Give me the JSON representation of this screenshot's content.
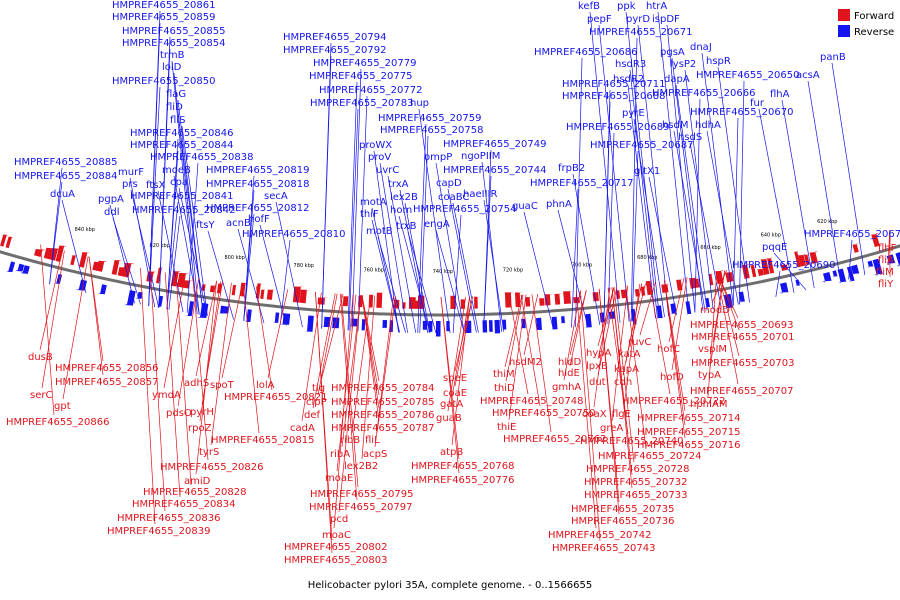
{
  "caption": "Helicobacter pylori 35A, complete genome. - 0..1566655",
  "legend": [
    {
      "label": "Forward",
      "color": "#e0141c"
    },
    {
      "label": "Reverse",
      "color": "#1414f0"
    }
  ],
  "colors": {
    "forward": "#e0141c",
    "reverse": "#1414f0",
    "ring": "#6e6e6e",
    "text": "#000000"
  },
  "scale_ticks": [
    "840 kbp",
    "820 kbp",
    "800 kbp",
    "780 kbp",
    "760 kbp",
    "740 kbp",
    "720 kbp",
    "700 kbp",
    "680 kbp",
    "660 kbp",
    "640 kbp",
    "620 kbp"
  ],
  "reverse_labels": [
    "HMPREF4655_20861",
    "HMPREF4655_20859",
    "HMPREF4655_20855",
    "HMPREF4655_20854",
    "trmB",
    "lolD",
    "HMPREF4655_20850",
    "flaG",
    "fliD",
    "fliS",
    "HMPREF4655_20846",
    "HMPREF4655_20844",
    "HMPREF4655_20838",
    "moeB",
    "HMPREF4655_20885",
    "murF",
    "cpa",
    "HMPREF4655_20884",
    "prs",
    "ftsX",
    "dcuA",
    "pgpA",
    "HMPREF4655_20841",
    "ddl",
    "HMPREF4655_20842",
    "ftsY",
    "HMPREF4655_20819",
    "HMPREF4655_20818",
    "secA",
    "HMPREF4655_20812",
    "acnB",
    "hofF",
    "HMPREF4655_20810",
    "HMPREF4655_20794",
    "HMPREF4655_20792",
    "HMPREF4655_20779",
    "HMPREF4655_20775",
    "HMPREF4655_20772",
    "HMPREF4655_20783",
    "hup",
    "HMPREF4655_20759",
    "HMPREF4655_20758",
    "HMPREF4655_20749",
    "proWX",
    "ngoPIIM",
    "proV",
    "uvrC",
    "HMPREF4655_20744",
    "trxA",
    "ompP",
    "haeIIIR",
    "capD",
    "lex2B",
    "motA",
    "hom",
    "coaBC",
    "HMPREF4655_20754",
    "guaC",
    "thiF",
    "trxB",
    "motB",
    "engA",
    "phnA",
    "kefB",
    "ppk",
    "htrA",
    "pepF",
    "pyrD",
    "ispDF",
    "HMPREF4655_20671",
    "HMPREF4655_20686",
    "pgsA",
    "dnaJ",
    "hsdR3",
    "lysP2",
    "hspR",
    "HMPREF4655_20711",
    "hsdR2",
    "dapA",
    "HMPREF4655_20650",
    "HMPREF4655_20688",
    "HMPREF4655_20666",
    "pyrE",
    "HMPREF4655_20670",
    "HMPREF4655_20689",
    "hsdM",
    "hdhA",
    "hsdS",
    "HMPREF4655_20687",
    "frpB2",
    "gltX1",
    "HMPREF4655_20717",
    "panB",
    "acsA",
    "flhA",
    "fur",
    "pqqE",
    "HMPREF4655_20676",
    "HMPREF4655_20690"
  ],
  "forward_labels": [
    "dusB",
    "HMPREF4655_20856",
    "HMPREF4655_20857",
    "serC",
    "gpt",
    "HMPREF4655_20866",
    "adhS",
    "spoT",
    "ymdA",
    "pdsO",
    "pyrH",
    "rpoZ",
    "tyrS",
    "HMPREF4655_20826",
    "amiD",
    "HMPREF4655_20828",
    "HMPREF4655_20834",
    "HMPREF4655_20836",
    "HMPREF4655_20839",
    "lolA",
    "HMPREF4655_20821",
    "HMPREF4655_20815",
    "tig",
    "clpP",
    "def",
    "cadA",
    "HMPREF4655_20784",
    "HMPREF4655_20785",
    "HMPREF4655_20786",
    "HMPREF4655_20787",
    "ribB",
    "fliL",
    "ribA",
    "acpS",
    "lex2B2",
    "moaE",
    "HMPREF4655_20795",
    "HMPREF4655_20797",
    "pcd",
    "moaC",
    "HMPREF4655_20802",
    "HMPREF4655_20803",
    "speE",
    "coaE",
    "gatA",
    "guaB",
    "atpB",
    "HMPREF4655_20768",
    "HMPREF4655_20776",
    "thiM",
    "thiD",
    "thiE",
    "hsdM2",
    "HMPREF4655_20748",
    "HMPREF4655_20750",
    "HMPREF4655_20762",
    "hldD",
    "hldE",
    "gmhA",
    "coaX",
    "greA",
    "lpxB",
    "dut",
    "flgE",
    "HMPREF4655_20740",
    "hypA",
    "kapA",
    "cdh",
    "HMPREF4655_20722",
    "katA",
    "ruvC",
    "hofC",
    "hofD",
    "typA",
    "hphIAM",
    "vspIM",
    "modD",
    "HMPREF4655_20693",
    "HMPREF4655_20701",
    "HMPREF4655_20703",
    "HMPREF4655_20707",
    "HMPREF4655_20714",
    "HMPREF4655_20715",
    "HMPREF4655_20716",
    "HMPREF4655_20724",
    "HMPREF4655_20728",
    "HMPREF4655_20732",
    "HMPREF4655_20733",
    "HMPREF4655_20735",
    "HMPREF4655_20736",
    "HMPREF4655_20742",
    "HMPREF4655_20743",
    "flhF",
    "fliA",
    "fliM",
    "fliY"
  ]
}
